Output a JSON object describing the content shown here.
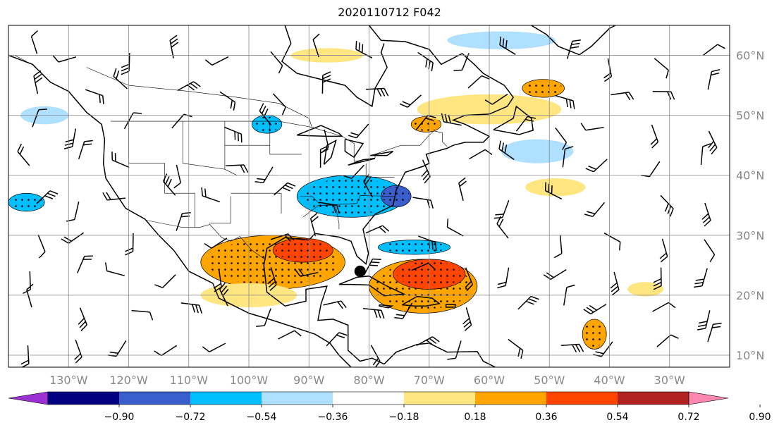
{
  "title": "2020110712 F042",
  "lon_labels": [
    "130°W",
    "120°W",
    "110°W",
    "100°W",
    "90°W",
    "80°W",
    "70°W",
    "60°W",
    "50°W",
    "40°W",
    "30°W"
  ],
  "lat_labels": [
    "60°N",
    "50°N",
    "40°N",
    "30°N",
    "20°N",
    "10°N"
  ],
  "colorbar": {
    "tick_labels": [
      "−0.90",
      "−0.72",
      "−0.54",
      "−0.36",
      "−0.18",
      "0.18",
      "0.36",
      "0.54",
      "0.72",
      "0.90"
    ],
    "colors": [
      "#9b30d4",
      "#000080",
      "#3a5fcd",
      "#00bfff",
      "#b0e0ff",
      "#ffffff",
      "#ffe680",
      "#ffa500",
      "#ff4500",
      "#b22222",
      "#ff88b0"
    ]
  },
  "map": {
    "extent_lon": [
      -140,
      -20
    ],
    "extent_lat": [
      8,
      65
    ],
    "gridline_color": "#888888",
    "coast_color": "#000000",
    "marker": {
      "lon": -81.5,
      "lat": 24.0,
      "color": "#000000"
    },
    "shaded_regions": [
      {
        "color": "#ffa500",
        "stipple": true,
        "lon": -96,
        "lat": 25.5,
        "rlon": 12,
        "rlat": 4.5
      },
      {
        "color": "#ff4500",
        "stipple": true,
        "lon": -91,
        "lat": 27.5,
        "rlon": 5,
        "rlat": 2
      },
      {
        "color": "#ffa500",
        "stipple": true,
        "lon": -71,
        "lat": 21.5,
        "rlon": 9,
        "rlat": 4.5
      },
      {
        "color": "#ff4500",
        "stipple": true,
        "lon": -70,
        "lat": 23.5,
        "rlon": 6,
        "rlat": 2.5
      },
      {
        "color": "#00bfff",
        "stipple": true,
        "lon": -83,
        "lat": 36.5,
        "rlon": 9,
        "rlat": 3.5
      },
      {
        "color": "#3a5fcd",
        "stipple": true,
        "lon": -75.5,
        "lat": 36.5,
        "rlon": 2.5,
        "rlat": 1.8
      },
      {
        "color": "#00bfff",
        "stipple": true,
        "lon": -72.5,
        "lat": 28,
        "rlon": 6,
        "rlat": 1.2
      },
      {
        "color": "#00bfff",
        "stipple": true,
        "lon": -137,
        "lat": 35.5,
        "rlon": 3,
        "rlat": 1.5
      },
      {
        "color": "#00bfff",
        "stipple": true,
        "lon": -97,
        "lat": 48.5,
        "rlon": 2.5,
        "rlat": 1.5
      },
      {
        "color": "#ffa500",
        "stipple": true,
        "lon": -51,
        "lat": 54.5,
        "rlon": 3.5,
        "rlat": 1.5
      },
      {
        "color": "#ffa500",
        "stipple": true,
        "lon": -70.5,
        "lat": 48.5,
        "rlon": 2.5,
        "rlat": 1.3
      },
      {
        "color": "#ffa500",
        "stipple": true,
        "lon": -42.5,
        "lat": 13.5,
        "rlon": 2,
        "rlat": 2.5
      },
      {
        "color": "#ffe680",
        "stipple": false,
        "lon": -60,
        "lat": 51,
        "rlon": 12,
        "rlat": 2.5
      },
      {
        "color": "#ffe680",
        "stipple": false,
        "lon": -49,
        "lat": 38,
        "rlon": 5,
        "rlat": 1.5
      },
      {
        "color": "#ffe680",
        "stipple": false,
        "lon": -100,
        "lat": 20,
        "rlon": 8,
        "rlat": 2
      },
      {
        "color": "#b0e0ff",
        "stipple": false,
        "lon": -52,
        "lat": 44,
        "rlon": 6,
        "rlat": 2
      },
      {
        "color": "#b0e0ff",
        "stipple": false,
        "lon": -58,
        "lat": 62.5,
        "rlon": 9,
        "rlat": 1.5
      },
      {
        "color": "#b0e0ff",
        "stipple": false,
        "lon": -134,
        "lat": 50,
        "rlon": 4,
        "rlat": 1.5
      },
      {
        "color": "#ffe680",
        "stipple": false,
        "lon": -87,
        "lat": 60,
        "rlon": 6,
        "rlat": 1.2
      },
      {
        "color": "#ffe680",
        "stipple": false,
        "lon": -34,
        "lat": 21,
        "rlon": 3,
        "rlat": 1.2
      }
    ]
  }
}
